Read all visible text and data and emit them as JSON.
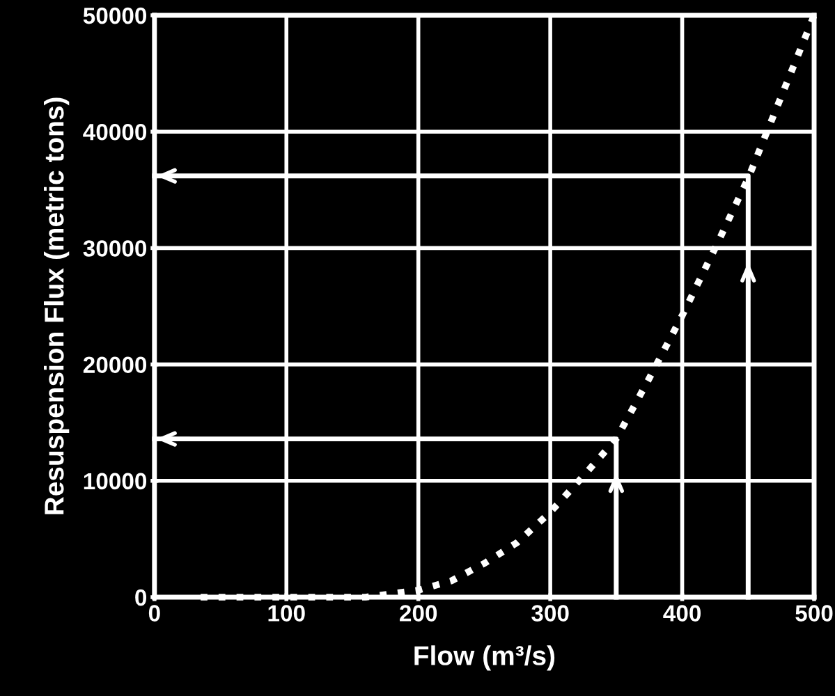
{
  "chart_data": {
    "type": "line",
    "xlabel": "Flow (m³/s)",
    "ylabel": "Resuspension Flux (metric tons)",
    "xlim": [
      0,
      500
    ],
    "ylim": [
      0,
      50000
    ],
    "xticks": [
      0,
      100,
      200,
      300,
      400,
      500
    ],
    "yticks": [
      0,
      10000,
      20000,
      30000,
      40000,
      50000
    ],
    "grid": true,
    "series": [
      {
        "color": "#ffffff",
        "line_style": "dotted",
        "x": [
          35,
          100,
          160,
          200,
          225,
          250,
          275,
          300,
          325,
          350,
          375,
          400,
          425,
          450,
          475,
          500
        ],
        "values": [
          0,
          0,
          0,
          600,
          1400,
          2900,
          4700,
          7300,
          10400,
          13600,
          18800,
          24200,
          30000,
          36000,
          43000,
          50000
        ]
      },
      {
        "color": "#ffffff",
        "line_style": "solid",
        "x": [
          350,
          350,
          0
        ],
        "values": [
          0,
          13600,
          13600
        ]
      },
      {
        "color": "#ffffff",
        "line_style": "solid",
        "x": [
          450,
          450,
          0
        ],
        "values": [
          0,
          36200,
          36200
        ]
      }
    ]
  }
}
